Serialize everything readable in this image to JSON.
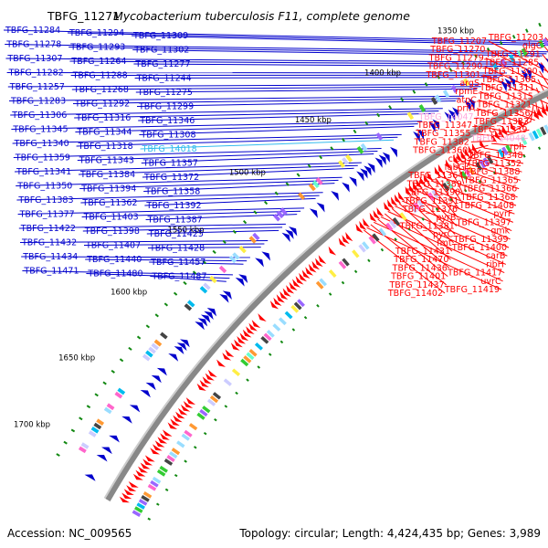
{
  "title": {
    "locus": "TBFG_11271",
    "organism": "Mycobacterium tuberculosis F11, complete genome"
  },
  "footer": {
    "accession": "Accession: NC_009565",
    "summary": "Topology: circular; Length: 4,424,435 bp; Genes: 3,989"
  },
  "colors": {
    "forward_strand": "#ff0000",
    "reverse_strand": "#0000cc",
    "pseudogene_fwd": "#ffaadd",
    "pseudogene_rev": "#33bbee",
    "backbone": "#888888",
    "gc_tick": "#118811"
  },
  "scale_labels": [
    "1350 kbp",
    "1400 kbp",
    "1450 kbp",
    "1500 kbp",
    "1550 kbp",
    "1600 kbp",
    "1650 kbp",
    "1700 kbp"
  ],
  "reverse_labels": [
    "TBFG_11284",
    "TBFG_11294",
    "TBFG_11309",
    "TBFG_11278",
    "TBFG_11293",
    "TBFG_11302",
    "TBFG_11307",
    "TBFG_11264",
    "TBFG_11277",
    "TBFG_11282",
    "TBFG_11288",
    "TBFG_11244",
    "TBFG_11257",
    "TBFG_11268",
    "TBFG_11275",
    "TBFG_11283",
    "TBFG_11292",
    "TBFG_11299",
    "TBFG_11306",
    "TBFG_11316",
    "TBFG_11346",
    "TBFG_11345",
    "TBFG_11344",
    "TBFG_11308",
    "TBFG_11340",
    "TBFG_11318",
    "TBFG_14018",
    "TBFG_11359",
    "TBFG_11343",
    "TBFG_11357",
    "TBFG_11341",
    "TBFG_11384",
    "TBFG_11372",
    "TBFG_11350",
    "TBFG_11394",
    "TBFG_11358",
    "TBFG_11383",
    "TBFG_11362",
    "TBFG_11392",
    "TBFG_11377",
    "TBFG_11403",
    "TBFG_11387",
    "TBFG_11422",
    "TBFG_11398",
    "TBFG_11425",
    "TBFG_11432",
    "TBFG_11407",
    "TBFG_11428",
    "TBFG_11434",
    "TBFG_11440",
    "TBFG_11457",
    "TBFG_11471",
    "TBFG_11480",
    "TBFG_11487"
  ],
  "forward_labels": [
    "TBFG_11203",
    "TBFG_11207",
    "glgC",
    "TBFG_11270",
    "TBFG_11291",
    "TBFG_11279",
    "TBFG_11285",
    "TBFG_11290",
    "TBFG_11300",
    "TBFG_11301",
    "TBFG_11305",
    "argS",
    "TBFG_11311",
    "rpmE",
    "TBFG_11315",
    "atpC",
    "TBFG_11321",
    "prfA",
    "TBFG_11356",
    "TBFG_14047",
    "TBFG_11333",
    "TBFG_11347",
    "TBFG_11339",
    "TBFG_11355",
    "TBFG_14048",
    "TBFG_11382",
    "rph",
    "TBFG_11360",
    "TBFG_11348",
    "clpS",
    "TBFG_11352",
    "fabG",
    "TBFG_11388",
    "TBFG_11364",
    "TBFG_11365",
    "TBFG_11389",
    "TBFG_11366",
    "TBFG_11390",
    "TBFG_11368",
    "TBFG_11391",
    "TBFG_11408",
    "TBFG_11376",
    "pyrF",
    "pyrB",
    "TBFG_11397",
    "TBFG_11381",
    "gmk",
    "pyrC",
    "TBFG_11399",
    "fmt",
    "TBFG_11400",
    "TBFG_11431",
    "carB",
    "TBFG_11470",
    "ribH",
    "TBFG_11436",
    "TBFG_11417",
    "TBFG_11401",
    "uvrC",
    "TBFG_11437",
    "TBFG_11419",
    "TBFG_11402"
  ]
}
